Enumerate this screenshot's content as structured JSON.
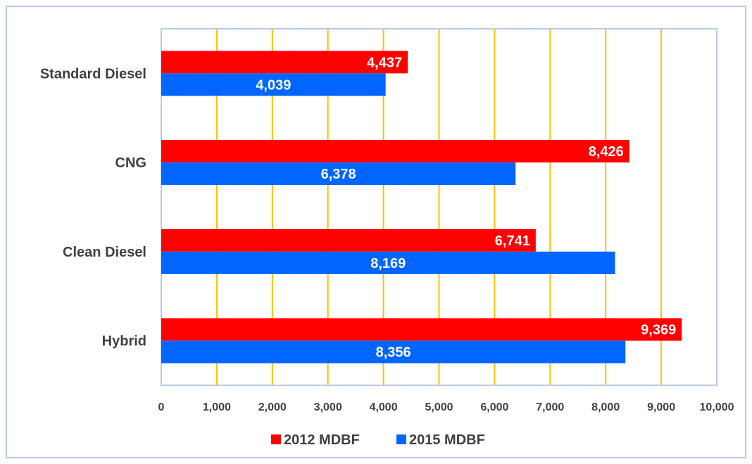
{
  "chart_data": {
    "type": "bar",
    "orientation": "horizontal",
    "categories": [
      "Standard Diesel",
      "CNG",
      "Clean Diesel",
      "Hybrid"
    ],
    "series": [
      {
        "name": "2012 MDBF",
        "color": "#ff0000",
        "values": [
          4437,
          8426,
          6741,
          9369
        ],
        "labels": [
          "4,437",
          "8,426",
          "6,741",
          "9,369"
        ]
      },
      {
        "name": "2015 MDBF",
        "color": "#0066ff",
        "values": [
          4039,
          6378,
          8169,
          8356
        ],
        "labels": [
          "4,039",
          "6,378",
          "8,169",
          "8,356"
        ]
      }
    ],
    "xlim": [
      0,
      10000
    ],
    "xticks": [
      0,
      1000,
      2000,
      3000,
      4000,
      5000,
      6000,
      7000,
      8000,
      9000,
      10000
    ],
    "xtick_labels": [
      "0",
      "1,000",
      "2,000",
      "3,000",
      "4,000",
      "5,000",
      "6,000",
      "7,000",
      "8,000",
      "9,000",
      "10,000"
    ],
    "grid": "vertical",
    "grid_color": "#ffc000",
    "plot_border_color": "#b8cce4",
    "label_color": "#404040",
    "legend_position": "bottom"
  }
}
